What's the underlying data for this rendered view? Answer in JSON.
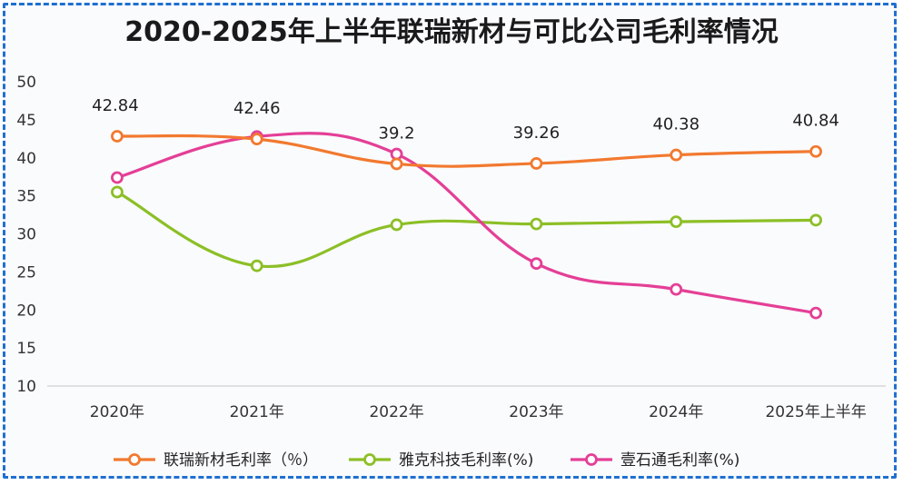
{
  "chart_data": {
    "type": "line",
    "title": "2020-2025年上半年联瑞新材与可比公司毛利率情况",
    "categories": [
      "2020年",
      "2021年",
      "2022年",
      "2023年",
      "2024年",
      "2025年上半年"
    ],
    "ylim": [
      10,
      50
    ],
    "yticks": [
      "10",
      "15",
      "20",
      "25",
      "30",
      "35",
      "40",
      "45",
      "50"
    ],
    "grid": false,
    "legend_position": "bottom",
    "series": [
      {
        "name": "联瑞新材毛利率（％）",
        "color": "#f2792f",
        "values": [
          42.84,
          42.46,
          39.2,
          39.26,
          40.38,
          40.84
        ],
        "labels": [
          "42.84",
          "42.46",
          "39.2",
          "39.26",
          "40.38",
          "40.84"
        ]
      },
      {
        "name": "雅克科技毛利率(%)",
        "color": "#8cbf26",
        "values": [
          35.5,
          25.8,
          31.2,
          31.3,
          31.6,
          31.8
        ],
        "labels": []
      },
      {
        "name": "壹石通毛利率(%)",
        "color": "#e43f96",
        "values": [
          37.4,
          42.8,
          40.5,
          26.1,
          22.7,
          19.6
        ],
        "labels": []
      }
    ]
  }
}
